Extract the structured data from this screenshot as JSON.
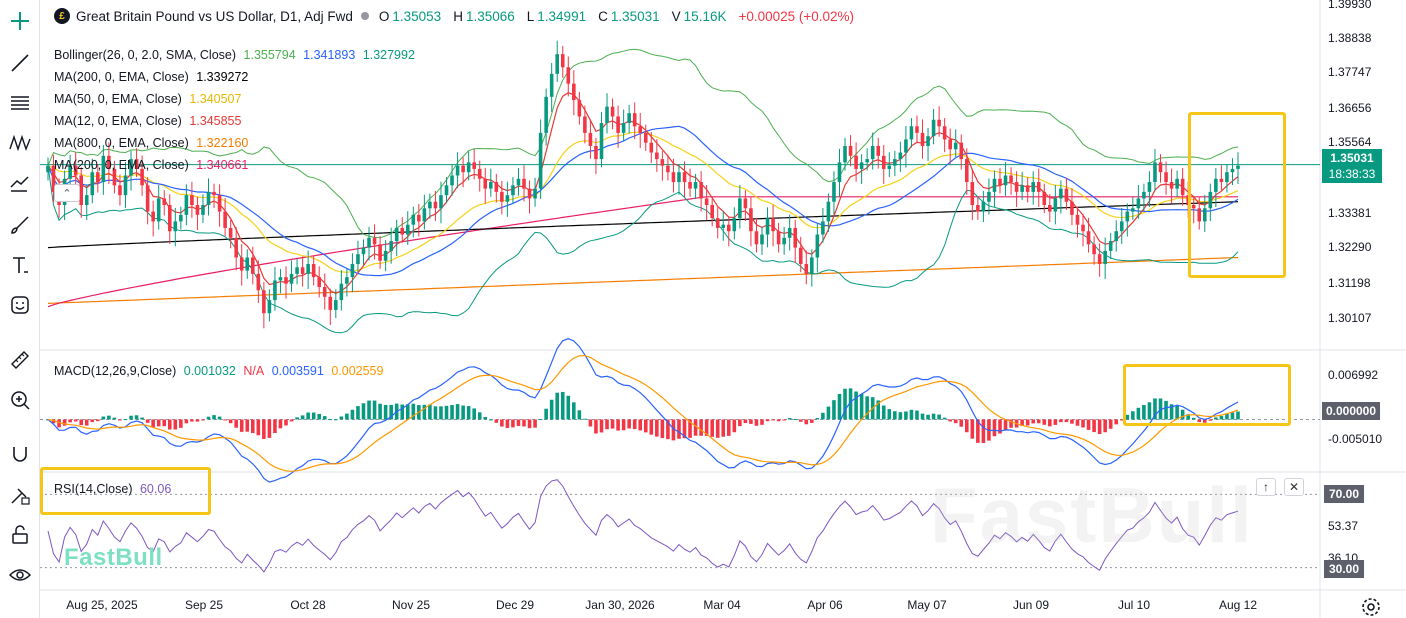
{
  "title": {
    "symbol": "Great Britain Pound vs US Dollar, D1, Adj Fwd",
    "o_label": "O",
    "o": "1.35053",
    "h_label": "H",
    "h": "1.35066",
    "l_label": "L",
    "l": "1.34991",
    "c_label": "C",
    "c": "1.35031",
    "v_label": "V",
    "v": "15.16K",
    "change": "+0.00025 (+0.02%)"
  },
  "indicators": [
    {
      "label": "Bollinger(26, 0, 2.0, SMA, Close)",
      "values": [
        "1.355794",
        "1.341893",
        "1.327992"
      ],
      "colors": [
        "#4caf50",
        "#2962ff",
        "#089981"
      ]
    },
    {
      "label": "MA(200, 0, EMA, Close)",
      "values": [
        "1.339272"
      ],
      "colors": [
        "#000000"
      ]
    },
    {
      "label": "MA(50, 0, EMA, Close)",
      "values": [
        "1.340507"
      ],
      "colors": [
        "#f7d117"
      ]
    },
    {
      "label": "MA(12, 0, EMA, Close)",
      "values": [
        "1.345855"
      ],
      "colors": [
        "#e53935"
      ]
    },
    {
      "label": "MA(800, 0, EMA, Close)",
      "values": [
        "1.322160"
      ],
      "colors": [
        "#f57c00"
      ]
    },
    {
      "label": "MA(200, 0, EMA, Close)",
      "values": [
        "1.340661"
      ],
      "colors": [
        "#e91e63"
      ]
    }
  ],
  "macd_legend": {
    "label": "MACD(12,26,9,Close)",
    "v1": "0.001032",
    "v2": "N/A",
    "v3": "0.003591",
    "v4": "0.002559"
  },
  "rsi_legend": {
    "label": "RSI(14,Close)",
    "value": "60.06"
  },
  "price_axis": [
    "1.39930",
    "1.38838",
    "1.37747",
    "1.36656",
    "1.35564",
    "1.33381",
    "1.32290",
    "1.31198",
    "1.30107"
  ],
  "current_price": {
    "price": "1.35031",
    "countdown": "18:38:33"
  },
  "macd_axis": [
    "0.006992",
    "-0.005010"
  ],
  "macd_zero": "0.000000",
  "rsi_axis": [
    "70.00",
    "53.37",
    "36.10",
    "30.00"
  ],
  "time_axis": [
    "Aug 25, 2025",
    "Sep 25",
    "Oct 28",
    "Nov 25",
    "Dec 29",
    "Jan 30, 2026",
    "Mar 04",
    "Apr 06",
    "May 07",
    "Jun 09",
    "Jul 10",
    "Aug 12"
  ],
  "watermark_small": "FastBull",
  "watermark_big": "FastBull",
  "icons": [
    "crosshair-icon",
    "trend-line-icon",
    "fib-retracement-icon",
    "pattern-icon",
    "prediction-icon",
    "brush-icon",
    "text-icon",
    "emoji-icon",
    "ruler-icon",
    "zoom-in-icon",
    "magnet-icon",
    "lock-drawing-icon",
    "unlock-icon",
    "eye-icon",
    "gear-icon"
  ],
  "colors": {
    "up": "#089981",
    "down": "#f23645",
    "bb_upper": "#4caf50",
    "bb_mid": "#2962ff",
    "bb_lower": "#089981",
    "ma200": "#000000",
    "ma50": "#f7d117",
    "ma12": "#e53935",
    "ma800": "#f57c00",
    "ma200b": "#e91e63",
    "macd": "#2962ff",
    "signal": "#ff9800",
    "rsi": "#7e57c2",
    "highlight": "#f5c518"
  },
  "chart_data": [
    {
      "type": "candlestick",
      "title": "Great Britain Pound vs US Dollar, D1, Adj Fwd",
      "ylim": [
        1.295,
        1.3993
      ],
      "x_range": [
        "Aug 2025",
        "Aug 12 2026"
      ],
      "close_approx": [
        1.35,
        1.342,
        1.338,
        1.346,
        1.35,
        1.347,
        1.338,
        1.341,
        1.348,
        1.345,
        1.353,
        1.349,
        1.344,
        1.341,
        1.347,
        1.352,
        1.349,
        1.344,
        1.336,
        1.333,
        1.34,
        1.338,
        1.33,
        1.333,
        1.335,
        1.341,
        1.338,
        1.335,
        1.338,
        1.342,
        1.341,
        1.336,
        1.331,
        1.328,
        1.322,
        1.318,
        1.322,
        1.317,
        1.312,
        1.305,
        1.309,
        1.315,
        1.316,
        1.314,
        1.317,
        1.319,
        1.317,
        1.32,
        1.316,
        1.313,
        1.31,
        1.306,
        1.309,
        1.314,
        1.316,
        1.32,
        1.323,
        1.325,
        1.328,
        1.326,
        1.321,
        1.324,
        1.327,
        1.331,
        1.329,
        1.332,
        1.335,
        1.333,
        1.337,
        1.339,
        1.337,
        1.341,
        1.344,
        1.347,
        1.35,
        1.348,
        1.351,
        1.349,
        1.346,
        1.343,
        1.345,
        1.342,
        1.339,
        1.341,
        1.344,
        1.346,
        1.343,
        1.34,
        1.343,
        1.36,
        1.371,
        1.378,
        1.384,
        1.38,
        1.375,
        1.37,
        1.365,
        1.36,
        1.356,
        1.352,
        1.363,
        1.368,
        1.365,
        1.36,
        1.363,
        1.366,
        1.362,
        1.36,
        1.357,
        1.354,
        1.352,
        1.35,
        1.348,
        1.345,
        1.348,
        1.345,
        1.343,
        1.345,
        1.34,
        1.338,
        1.334,
        1.331,
        1.332,
        1.33,
        1.334,
        1.34,
        1.337,
        1.33,
        1.326,
        1.329,
        1.334,
        1.33,
        1.326,
        1.328,
        1.331,
        1.325,
        1.32,
        1.317,
        1.322,
        1.329,
        1.333,
        1.339,
        1.345,
        1.351,
        1.356,
        1.353,
        1.349,
        1.351,
        1.352,
        1.356,
        1.353,
        1.349,
        1.35,
        1.352,
        1.354,
        1.358,
        1.362,
        1.36,
        1.356,
        1.359,
        1.364,
        1.362,
        1.358,
        1.355,
        1.357,
        1.352,
        1.345,
        1.338,
        1.336,
        1.339,
        1.342,
        1.346,
        1.344,
        1.347,
        1.345,
        1.342,
        1.344,
        1.342,
        1.345,
        1.342,
        1.338,
        1.336,
        1.34,
        1.343,
        1.339,
        1.335,
        1.332,
        1.33,
        1.326,
        1.323,
        1.32,
        1.324,
        1.327,
        1.33,
        1.333,
        1.336,
        1.337,
        1.34,
        1.342,
        1.345,
        1.351,
        1.348,
        1.345,
        1.343,
        1.346,
        1.341,
        1.338,
        1.337,
        1.333,
        1.337,
        1.342,
        1.346,
        1.345,
        1.348,
        1.349,
        1.35
      ]
    },
    {
      "type": "line",
      "title": "MACD(12,26,9,Close)",
      "series": [
        {
          "name": "MACD",
          "value": 0.003591
        },
        {
          "name": "Signal",
          "value": 0.002559
        },
        {
          "name": "Histogram",
          "value": 0.001032
        }
      ],
      "ylim": [
        -0.0065,
        0.0085
      ]
    },
    {
      "type": "line",
      "title": "RSI(14,Close)",
      "series": [
        {
          "name": "RSI",
          "value": 60.06
        }
      ],
      "ylim": [
        20,
        80
      ],
      "levels": [
        70,
        30
      ]
    }
  ]
}
